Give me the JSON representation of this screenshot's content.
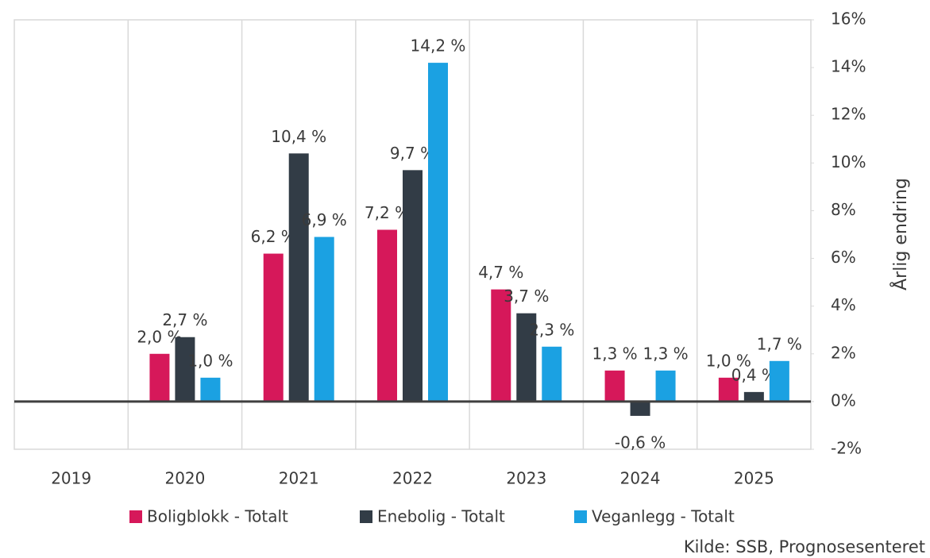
{
  "chart_data": {
    "type": "bar",
    "categories": [
      "2019",
      "2020",
      "2021",
      "2022",
      "2023",
      "2024",
      "2025"
    ],
    "series": [
      {
        "name": "Boligblokk - Totalt",
        "color": "#d6185a",
        "values": [
          null,
          2.0,
          6.2,
          7.2,
          4.7,
          1.3,
          1.0
        ],
        "value_labels": [
          null,
          "2,0 %",
          "6,2 %",
          "7,2 %",
          "4,7 %",
          "1,3 %",
          "1,0 %"
        ]
      },
      {
        "name": "Enebolig - Totalt",
        "color": "#323c46",
        "values": [
          null,
          2.7,
          10.4,
          9.7,
          3.7,
          -0.6,
          0.4
        ],
        "value_labels": [
          null,
          "2,7 %",
          "10,4 %",
          "9,7 %",
          "3,7 %",
          "-0,6 %",
          "0,4 %"
        ]
      },
      {
        "name": "Veganlegg - Totalt",
        "color": "#1ba1e2",
        "values": [
          null,
          1.0,
          6.9,
          14.2,
          2.3,
          1.3,
          1.7
        ],
        "value_labels": [
          null,
          "1,0 %",
          "6,9 %",
          "14,2 %",
          "2,3 %",
          "1,3 %",
          "1,7 %"
        ]
      }
    ],
    "y_label": "Årlig endring",
    "ylim": [
      -2,
      16
    ],
    "yticks": [
      {
        "value": -2,
        "label": "-2%"
      },
      {
        "value": 0,
        "label": "0%"
      },
      {
        "value": 2,
        "label": "2%"
      },
      {
        "value": 4,
        "label": "4%"
      },
      {
        "value": 6,
        "label": "6%"
      },
      {
        "value": 8,
        "label": "8%"
      },
      {
        "value": 10,
        "label": "10%"
      },
      {
        "value": 12,
        "label": "12%"
      },
      {
        "value": 14,
        "label": "14%"
      },
      {
        "value": 16,
        "label": "16%"
      }
    ],
    "legend": "bottom",
    "source": "Kilde: SSB, Prognosesenteret"
  }
}
